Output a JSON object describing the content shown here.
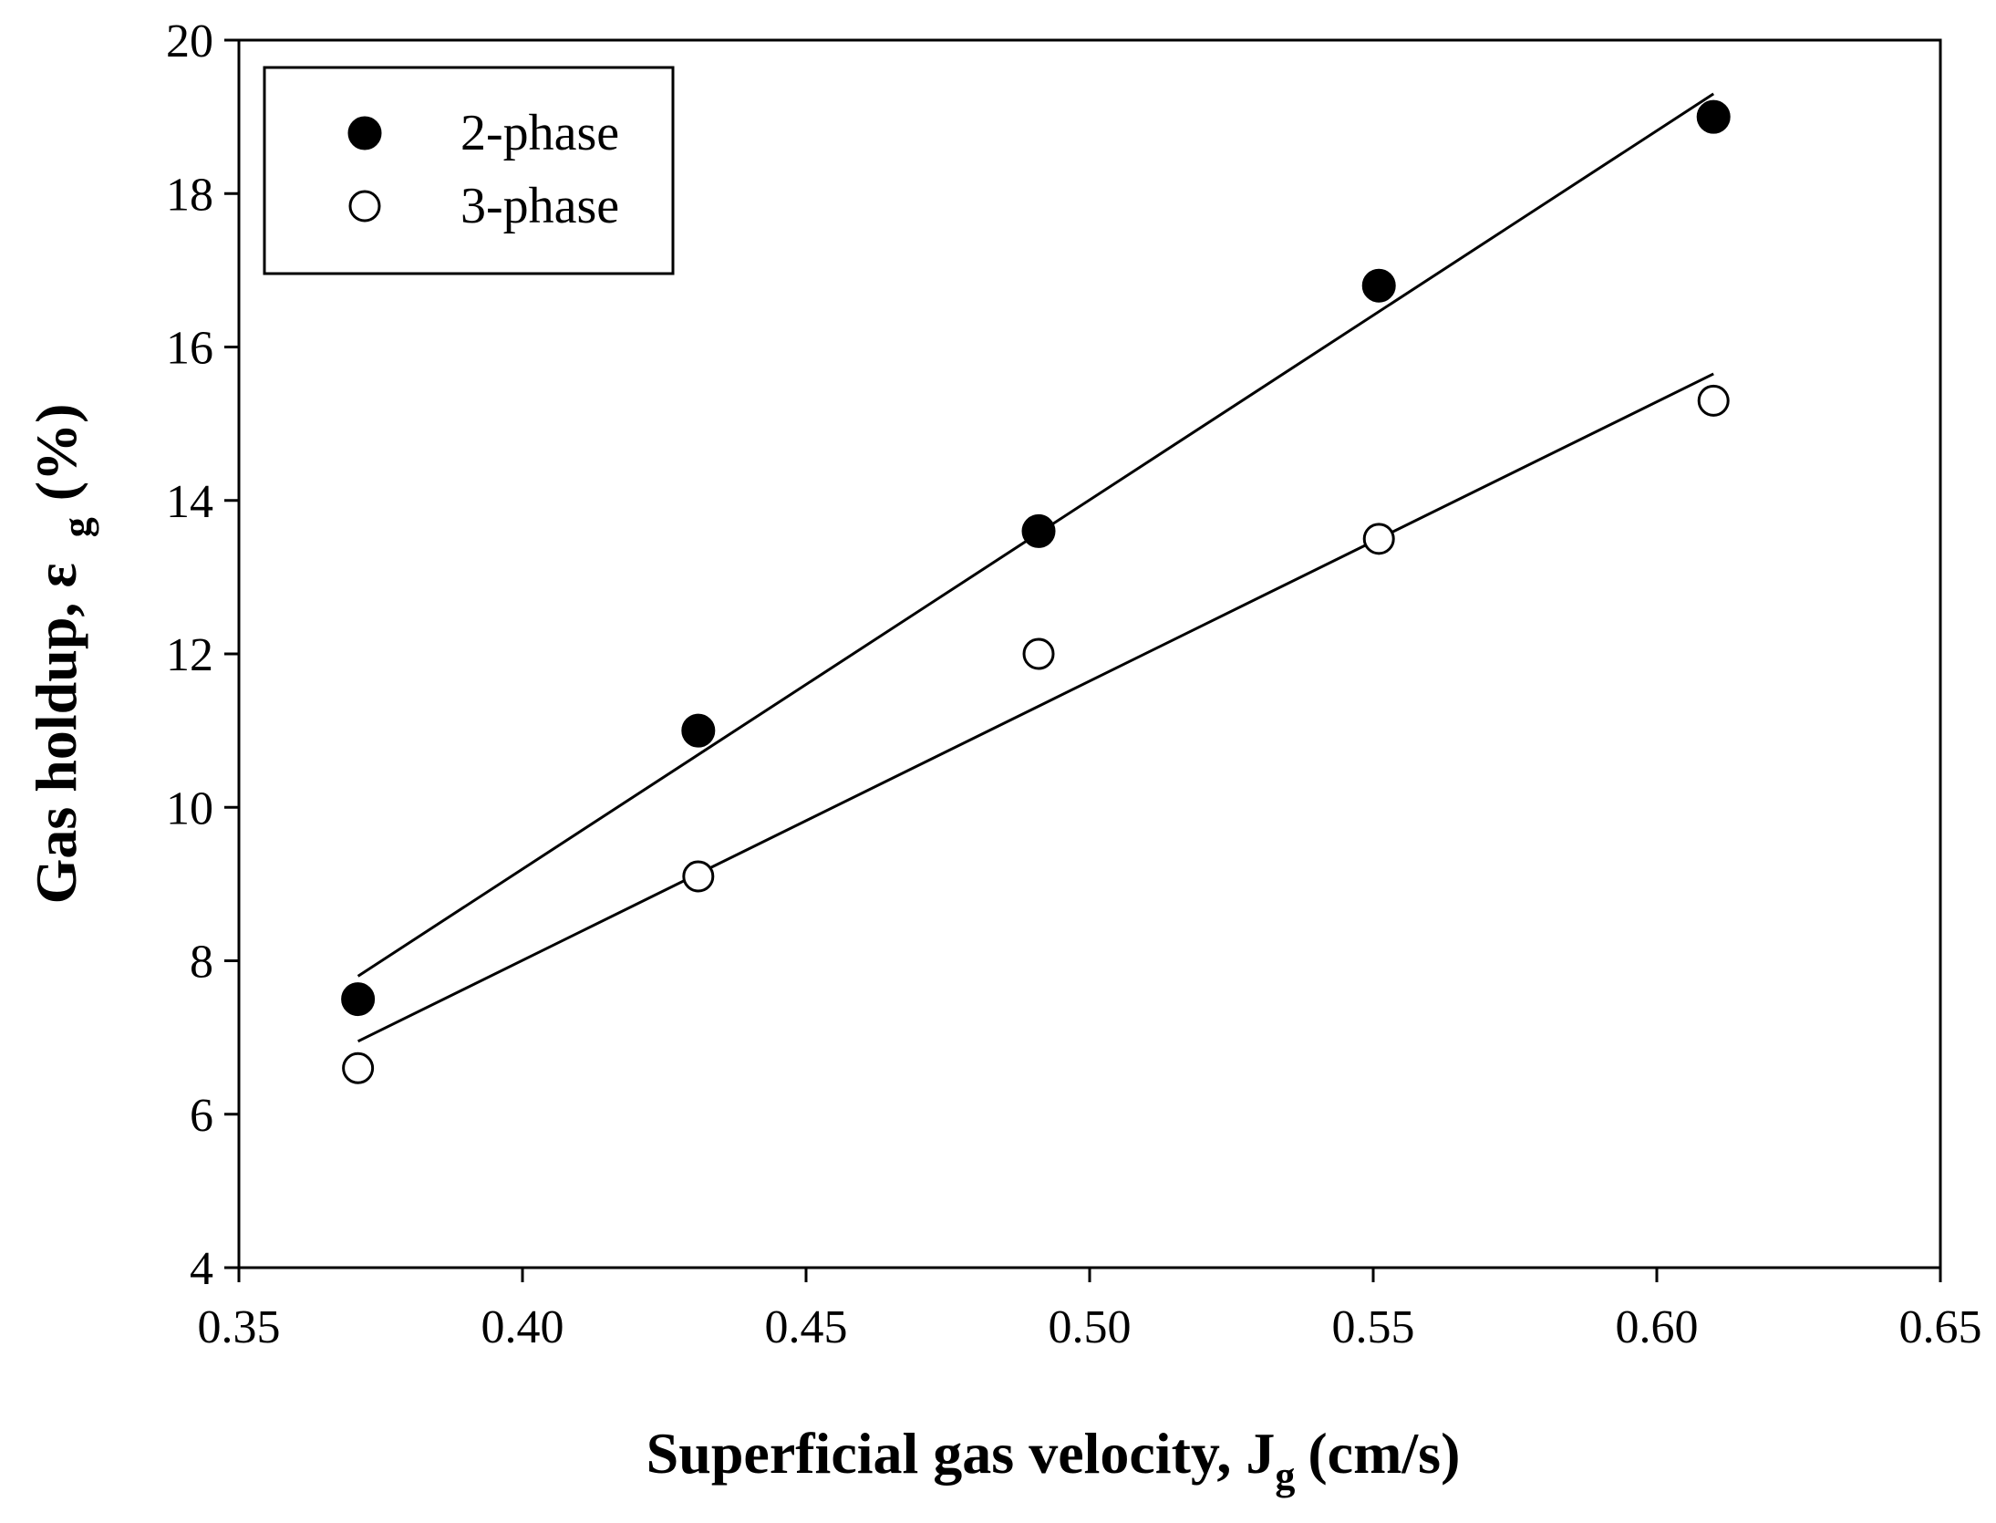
{
  "chart_data": {
    "type": "scatter",
    "title": "",
    "xlabel": "Superficial gas velocity, J",
    "xlabel_subscript": "g",
    "xlabel_units": "(cm/s)",
    "ylabel": "Gas holdup, ε",
    "ylabel_subscript": "g",
    "ylabel_units": "(%)",
    "xlim": [
      0.35,
      0.65
    ],
    "ylim": [
      4,
      20
    ],
    "xticks": [
      "0.35",
      "0.40",
      "0.45",
      "0.50",
      "0.55",
      "0.60",
      "0.65"
    ],
    "yticks": [
      "4",
      "6",
      "8",
      "10",
      "12",
      "14",
      "16",
      "18",
      "20"
    ],
    "grid": false,
    "legend_position": "top-left",
    "series": [
      {
        "name": "2-phase",
        "marker": "filled-circle",
        "x": [
          0.371,
          0.431,
          0.491,
          0.551,
          0.61
        ],
        "y": [
          7.5,
          11.0,
          13.6,
          16.8,
          19.0
        ],
        "fit_line": {
          "x": [
            0.371,
            0.61
          ],
          "y": [
            7.8,
            19.3
          ]
        }
      },
      {
        "name": "3-phase",
        "marker": "open-circle",
        "x": [
          0.371,
          0.431,
          0.491,
          0.551,
          0.61
        ],
        "y": [
          6.6,
          9.1,
          12.0,
          13.5,
          15.3
        ],
        "fit_line": {
          "x": [
            0.371,
            0.61
          ],
          "y": [
            6.95,
            15.65
          ]
        }
      }
    ]
  }
}
